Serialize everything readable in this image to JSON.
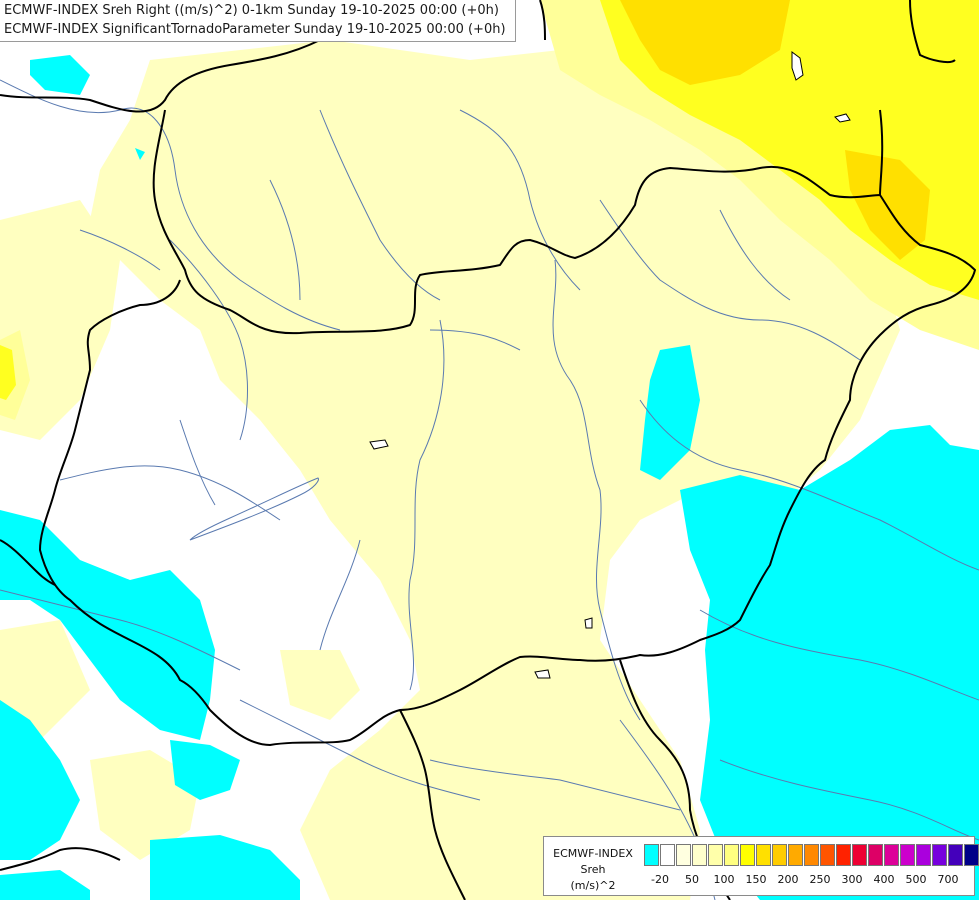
{
  "header": {
    "title_line1": "ECMWF-INDEX Sreh Right ((m/s)^2) 0-1km Sunday 19-10-2025 00:00 (+0h)",
    "title_line2": "ECMWF-INDEX SignificantTornadoParameter Sunday 19-10-2025 00:00 (+0h)"
  },
  "legend": {
    "label_line1": "ECMWF-INDEX",
    "label_line2": "Sreh",
    "label_line3": "(m/s)^2",
    "colors": [
      "#00ffff",
      "#ffffff",
      "#ffffe0",
      "#ffffcc",
      "#ffffaa",
      "#ffff80",
      "#ffff00",
      "#ffe000",
      "#ffcc00",
      "#ffaa00",
      "#ff8800",
      "#ff5500",
      "#ff2200",
      "#ee0033",
      "#dd0066",
      "#dd0099",
      "#cc00cc",
      "#aa00dd",
      "#7700dd",
      "#4400bb",
      "#000088"
    ],
    "ticks": [
      "-20",
      "50",
      "100",
      "150",
      "200",
      "250",
      "300",
      "400",
      "500",
      "700"
    ]
  },
  "colors": {
    "cyan": "#00ffff",
    "pale_yellow": "#ffffc0",
    "light_yellow": "#ffff90",
    "yellow": "#ffff00",
    "gold": "#ffe000",
    "border": "#000000",
    "river": "#5a7ab0"
  }
}
